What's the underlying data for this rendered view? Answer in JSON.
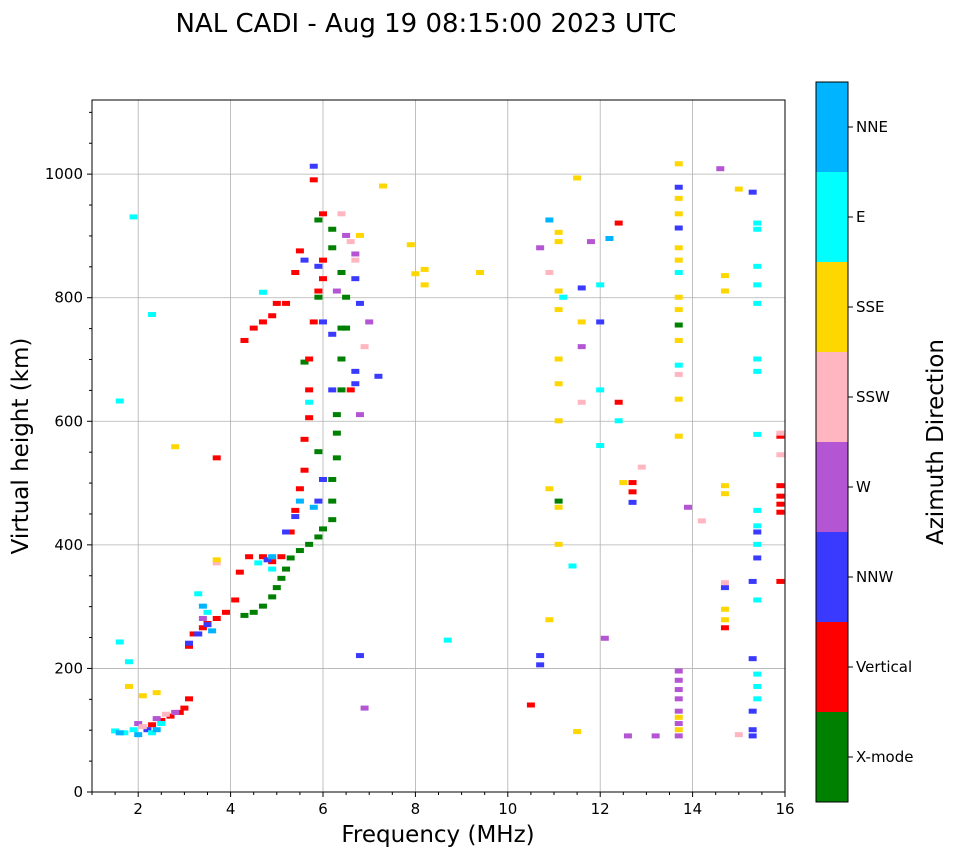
{
  "chart_data": {
    "type": "scatter",
    "title": "NAL CADI - Aug 19 08:15:00 2023 UTC",
    "xlabel": "Frequency (MHz)",
    "ylabel": "Virtual height (km)",
    "xlim": [
      1,
      16
    ],
    "ylim": [
      0,
      1120
    ],
    "xticks": [
      2,
      4,
      6,
      8,
      10,
      12,
      14,
      16
    ],
    "yticks": [
      0,
      200,
      400,
      600,
      800,
      1000
    ],
    "grid": true,
    "colorbar": {
      "title": "Azimuth Direction",
      "categories": [
        {
          "name": "NNE",
          "color": "#00b4ff"
        },
        {
          "name": "E",
          "color": "#00ffff"
        },
        {
          "name": "SSE",
          "color": "#ffd700"
        },
        {
          "name": "SSW",
          "color": "#ffb6c1"
        },
        {
          "name": "W",
          "color": "#b456d4"
        },
        {
          "name": "NNW",
          "color": "#3a3aff"
        },
        {
          "name": "Vertical",
          "color": "#ff0000"
        },
        {
          "name": "X-mode",
          "color": "#008000"
        }
      ]
    },
    "series": [
      {
        "name": "X-mode",
        "points": [
          [
            4.3,
            285
          ],
          [
            4.5,
            290
          ],
          [
            4.7,
            300
          ],
          [
            4.9,
            315
          ],
          [
            5.0,
            330
          ],
          [
            5.1,
            345
          ],
          [
            5.2,
            360
          ],
          [
            5.3,
            378
          ],
          [
            5.5,
            390
          ],
          [
            5.7,
            400
          ],
          [
            5.9,
            412
          ],
          [
            6.0,
            425
          ],
          [
            6.2,
            440
          ],
          [
            6.2,
            470
          ],
          [
            6.2,
            505
          ],
          [
            6.3,
            540
          ],
          [
            6.3,
            580
          ],
          [
            6.3,
            610
          ],
          [
            6.4,
            650
          ],
          [
            6.4,
            700
          ],
          [
            6.5,
            750
          ],
          [
            6.5,
            800
          ],
          [
            6.4,
            840
          ],
          [
            6.2,
            880
          ],
          [
            6.2,
            910
          ],
          [
            5.9,
            925
          ],
          [
            5.9,
            800
          ],
          [
            6.4,
            750
          ],
          [
            5.6,
            695
          ],
          [
            5.9,
            550
          ],
          [
            11.1,
            470
          ],
          [
            13.7,
            755
          ]
        ]
      },
      {
        "name": "Vertical",
        "points": [
          [
            2.3,
            108
          ],
          [
            2.5,
            115
          ],
          [
            2.7,
            122
          ],
          [
            2.9,
            128
          ],
          [
            3.0,
            135
          ],
          [
            3.1,
            150
          ],
          [
            3.1,
            235
          ],
          [
            3.2,
            255
          ],
          [
            3.4,
            265
          ],
          [
            3.5,
            272
          ],
          [
            3.7,
            280
          ],
          [
            3.9,
            290
          ],
          [
            4.1,
            310
          ],
          [
            4.2,
            355
          ],
          [
            4.4,
            380
          ],
          [
            4.7,
            380
          ],
          [
            4.9,
            372
          ],
          [
            5.1,
            380
          ],
          [
            5.3,
            420
          ],
          [
            5.4,
            455
          ],
          [
            5.5,
            490
          ],
          [
            5.6,
            520
          ],
          [
            5.6,
            570
          ],
          [
            5.7,
            605
          ],
          [
            5.7,
            650
          ],
          [
            5.7,
            700
          ],
          [
            5.8,
            760
          ],
          [
            5.9,
            810
          ],
          [
            6.0,
            830
          ],
          [
            6.0,
            860
          ],
          [
            6.0,
            935
          ],
          [
            5.8,
            990
          ],
          [
            5.5,
            875
          ],
          [
            5.4,
            840
          ],
          [
            5.2,
            790
          ],
          [
            5.0,
            790
          ],
          [
            4.9,
            770
          ],
          [
            4.7,
            760
          ],
          [
            4.5,
            750
          ],
          [
            4.3,
            730
          ],
          [
            3.7,
            540
          ],
          [
            6.6,
            650
          ],
          [
            10.5,
            140
          ],
          [
            12.4,
            920
          ],
          [
            12.4,
            630
          ],
          [
            12.7,
            500
          ],
          [
            12.7,
            485
          ],
          [
            15.9,
            340
          ],
          [
            15.9,
            495
          ],
          [
            15.9,
            478
          ],
          [
            15.9,
            465
          ],
          [
            15.9,
            452
          ],
          [
            14.7,
            265
          ],
          [
            15.9,
            575
          ]
        ]
      },
      {
        "name": "NNW",
        "points": [
          [
            2.2,
            100
          ],
          [
            3.1,
            240
          ],
          [
            3.3,
            255
          ],
          [
            3.5,
            270
          ],
          [
            4.8,
            375
          ],
          [
            5.2,
            420
          ],
          [
            5.4,
            445
          ],
          [
            5.9,
            470
          ],
          [
            6.0,
            505
          ],
          [
            6.0,
            760
          ],
          [
            6.2,
            740
          ],
          [
            6.2,
            650
          ],
          [
            6.7,
            830
          ],
          [
            6.8,
            790
          ],
          [
            6.7,
            680
          ],
          [
            6.7,
            660
          ],
          [
            5.9,
            850
          ],
          [
            5.6,
            860
          ],
          [
            5.8,
            1012
          ],
          [
            6.8,
            220
          ],
          [
            7.2,
            672
          ],
          [
            10.7,
            205
          ],
          [
            10.7,
            220
          ],
          [
            11.6,
            815
          ],
          [
            12.0,
            760
          ],
          [
            12.7,
            468
          ],
          [
            13.7,
            978
          ],
          [
            13.7,
            912
          ],
          [
            14.7,
            330
          ],
          [
            15.3,
            970
          ],
          [
            15.3,
            340
          ],
          [
            15.3,
            215
          ],
          [
            15.3,
            130
          ],
          [
            15.3,
            100
          ],
          [
            15.3,
            90
          ],
          [
            15.4,
            378
          ],
          [
            15.4,
            420
          ]
        ]
      },
      {
        "name": "W",
        "points": [
          [
            2.0,
            110
          ],
          [
            2.4,
            118
          ],
          [
            2.8,
            128
          ],
          [
            3.4,
            280
          ],
          [
            6.3,
            810
          ],
          [
            6.5,
            900
          ],
          [
            6.7,
            870
          ],
          [
            6.8,
            610
          ],
          [
            7.0,
            760
          ],
          [
            6.9,
            135
          ],
          [
            10.7,
            880
          ],
          [
            11.6,
            720
          ],
          [
            11.8,
            890
          ],
          [
            12.6,
            90
          ],
          [
            13.2,
            90
          ],
          [
            13.7,
            195
          ],
          [
            13.7,
            180
          ],
          [
            13.7,
            165
          ],
          [
            13.7,
            150
          ],
          [
            13.7,
            130
          ],
          [
            13.7,
            110
          ],
          [
            13.7,
            90
          ],
          [
            13.9,
            460
          ],
          [
            14.6,
            1008
          ],
          [
            12.1,
            248
          ]
        ]
      },
      {
        "name": "SSW",
        "points": [
          [
            2.1,
            105
          ],
          [
            2.6,
            125
          ],
          [
            3.7,
            370
          ],
          [
            6.4,
            935
          ],
          [
            6.6,
            890
          ],
          [
            6.7,
            860
          ],
          [
            6.9,
            720
          ],
          [
            10.9,
            840
          ],
          [
            11.6,
            630
          ],
          [
            12.9,
            525
          ],
          [
            13.7,
            675
          ],
          [
            14.2,
            438
          ],
          [
            14.7,
            338
          ],
          [
            15.0,
            92
          ],
          [
            15.9,
            580
          ],
          [
            15.9,
            545
          ]
        ]
      },
      {
        "name": "SSE",
        "points": [
          [
            1.8,
            170
          ],
          [
            2.1,
            155
          ],
          [
            2.4,
            160
          ],
          [
            2.8,
            558
          ],
          [
            3.7,
            375
          ],
          [
            6.8,
            900
          ],
          [
            7.3,
            980
          ],
          [
            7.9,
            885
          ],
          [
            8.0,
            838
          ],
          [
            8.2,
            820
          ],
          [
            8.2,
            845
          ],
          [
            9.4,
            840
          ],
          [
            10.9,
            278
          ],
          [
            10.9,
            490
          ],
          [
            11.1,
            905
          ],
          [
            11.1,
            890
          ],
          [
            11.1,
            810
          ],
          [
            11.1,
            780
          ],
          [
            11.1,
            700
          ],
          [
            11.1,
            660
          ],
          [
            11.1,
            600
          ],
          [
            11.1,
            400
          ],
          [
            11.1,
            460
          ],
          [
            11.5,
            993
          ],
          [
            11.6,
            760
          ],
          [
            12.5,
            500
          ],
          [
            13.7,
            1016
          ],
          [
            13.7,
            960
          ],
          [
            13.7,
            935
          ],
          [
            13.7,
            880
          ],
          [
            13.7,
            860
          ],
          [
            13.7,
            800
          ],
          [
            13.7,
            780
          ],
          [
            13.7,
            730
          ],
          [
            13.7,
            635
          ],
          [
            13.7,
            575
          ],
          [
            13.7,
            120
          ],
          [
            13.7,
            100
          ],
          [
            14.7,
            835
          ],
          [
            14.7,
            810
          ],
          [
            14.7,
            495
          ],
          [
            14.7,
            482
          ],
          [
            14.7,
            295
          ],
          [
            14.7,
            278
          ],
          [
            15.0,
            975
          ],
          [
            11.5,
            97
          ]
        ]
      },
      {
        "name": "E",
        "points": [
          [
            1.5,
            98
          ],
          [
            1.7,
            95
          ],
          [
            1.9,
            100
          ],
          [
            2.3,
            95
          ],
          [
            2.5,
            110
          ],
          [
            3.3,
            320
          ],
          [
            3.5,
            290
          ],
          [
            4.7,
            808
          ],
          [
            4.6,
            370
          ],
          [
            4.9,
            360
          ],
          [
            5.7,
            630
          ],
          [
            1.8,
            210
          ],
          [
            1.6,
            242
          ],
          [
            1.6,
            632
          ],
          [
            1.9,
            930
          ],
          [
            2.3,
            772
          ],
          [
            8.7,
            245
          ],
          [
            11.2,
            800
          ],
          [
            11.4,
            365
          ],
          [
            12.0,
            820
          ],
          [
            12.0,
            650
          ],
          [
            12.0,
            560
          ],
          [
            12.4,
            600
          ],
          [
            13.7,
            840
          ],
          [
            13.7,
            690
          ],
          [
            15.4,
            920
          ],
          [
            15.4,
            910
          ],
          [
            15.4,
            850
          ],
          [
            15.4,
            820
          ],
          [
            15.4,
            790
          ],
          [
            15.4,
            700
          ],
          [
            15.4,
            680
          ],
          [
            15.4,
            578
          ],
          [
            15.4,
            455
          ],
          [
            15.4,
            430
          ],
          [
            15.4,
            400
          ],
          [
            15.4,
            310
          ],
          [
            15.4,
            190
          ],
          [
            15.4,
            170
          ],
          [
            15.4,
            150
          ]
        ]
      },
      {
        "name": "NNE",
        "points": [
          [
            1.6,
            95
          ],
          [
            2.0,
            92
          ],
          [
            2.4,
            100
          ],
          [
            3.4,
            300
          ],
          [
            3.6,
            260
          ],
          [
            4.9,
            380
          ],
          [
            5.5,
            470
          ],
          [
            5.8,
            460
          ],
          [
            10.9,
            925
          ],
          [
            12.2,
            895
          ]
        ]
      }
    ]
  }
}
